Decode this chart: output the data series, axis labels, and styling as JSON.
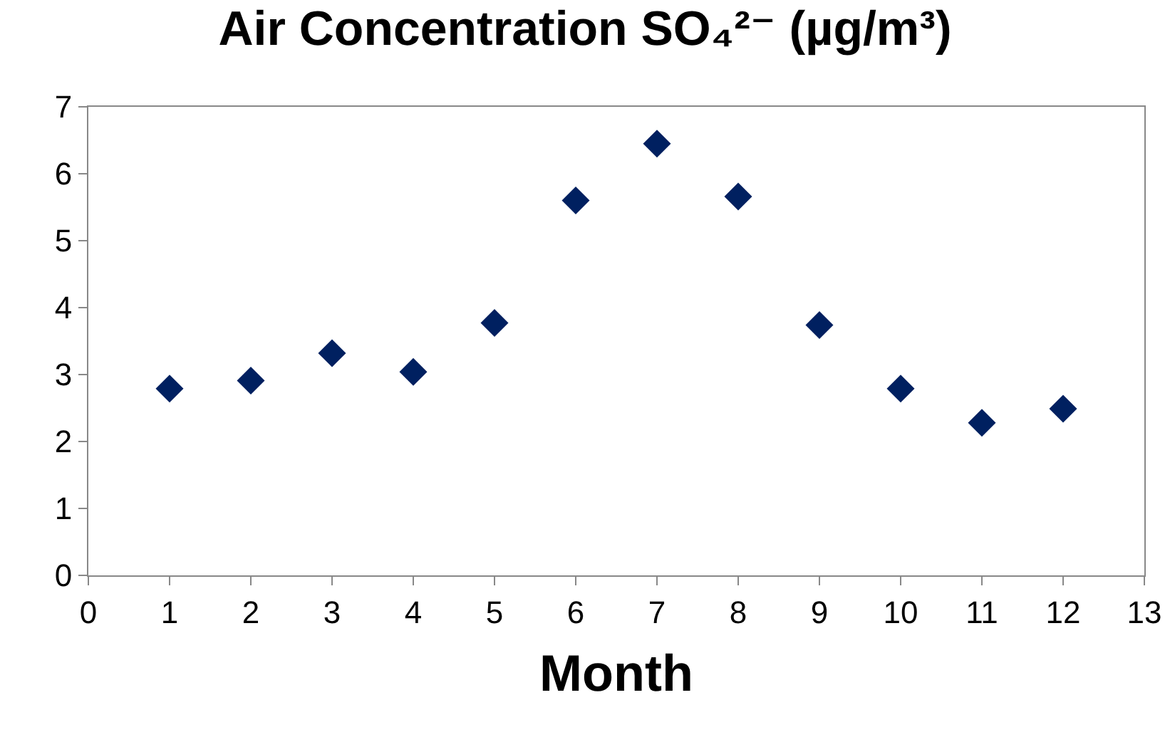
{
  "chart_data": {
    "type": "scatter",
    "title": "Air Concentration SO₄²⁻ (µg/m³)",
    "xlabel": "Month",
    "x": [
      1,
      2,
      3,
      4,
      5,
      6,
      7,
      8,
      9,
      10,
      11,
      12
    ],
    "series": [
      {
        "color": "#002060",
        "values": [
          2.79,
          2.91,
          3.32,
          3.04,
          3.77,
          5.6,
          6.45,
          5.66,
          3.74,
          2.79,
          2.28,
          2.49
        ]
      }
    ],
    "xlim": [
      0,
      13
    ],
    "xticks": [
      0,
      1,
      2,
      3,
      4,
      5,
      6,
      7,
      8,
      9,
      10,
      11,
      12,
      13
    ],
    "ylim": [
      0,
      7
    ],
    "yticks": [
      0,
      1,
      2,
      3,
      4,
      5,
      6,
      7
    ],
    "grid": false,
    "marker": "diamond"
  }
}
